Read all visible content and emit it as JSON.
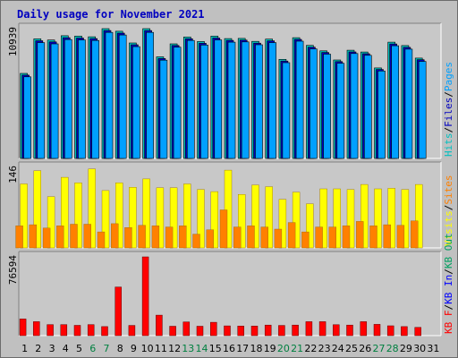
{
  "chart_data": {
    "type": "bar",
    "title": "Daily usage for November 2021",
    "days": [
      "1",
      "2",
      "3",
      "4",
      "5",
      "6",
      "7",
      "8",
      "9",
      "10",
      "11",
      "12",
      "13",
      "14",
      "15",
      "16",
      "17",
      "18",
      "19",
      "20",
      "21",
      "22",
      "23",
      "24",
      "25",
      "26",
      "27",
      "28",
      "29",
      "30",
      "31"
    ],
    "weekend_days": [
      "6",
      "7",
      "13",
      "14",
      "20",
      "21",
      "27",
      "28"
    ],
    "colors": {
      "hits": "#00c0c0",
      "files": "#0000c0",
      "pages": "#00a0ff",
      "visits": "#ffff00",
      "sites": "#ff8000",
      "kbf": "#ff0000",
      "kbin": "#0000ff",
      "kbout": "#00a060",
      "weekday_label": "#000000",
      "weekend_label": "#008040",
      "background": "#c0c0c0",
      "plot_background": "#c8c8c8"
    },
    "panels": [
      {
        "name": "hits-files-pages",
        "ymax_label": "10939",
        "ymax": 10939,
        "legend": [
          {
            "text": "Hits",
            "color": "#00c0c0"
          },
          {
            "text": "Files",
            "color": "#0000c0"
          },
          {
            "text": "Pages",
            "color": "#00a0ff"
          }
        ],
        "series": [
          {
            "name": "Hits",
            "values": [
              7170,
              10080,
              9980,
              10340,
              10310,
              10250,
              10940,
              10720,
              9730,
              10940,
              8560,
              9660,
              10240,
              9850,
              10310,
              10100,
              10120,
              9870,
              10060,
              8350,
              10180,
              9530,
              9070,
              8300,
              9120,
              8970,
              7630,
              9800,
              9510,
              8460
            ]
          },
          {
            "name": "Files",
            "values": [
              7020,
              9920,
              9820,
              10180,
              10150,
              10100,
              10780,
              10560,
              9580,
              10780,
              8420,
              9520,
              10090,
              9700,
              10150,
              9950,
              9970,
              9720,
              9910,
              8210,
              10030,
              9380,
              8930,
              8160,
              8980,
              8830,
              7500,
              9650,
              9360,
              8320
            ]
          },
          {
            "name": "Pages",
            "values": [
              6880,
              9760,
              9660,
              10020,
              9990,
              9940,
              10620,
              10400,
              9420,
              10620,
              8280,
              9380,
              9940,
              9560,
              9990,
              9800,
              9820,
              9580,
              9760,
              8070,
              9880,
              9230,
              8790,
              8020,
              8840,
              8690,
              7370,
              9500,
              9210,
              8180
            ]
          }
        ]
      },
      {
        "name": "visits-sites",
        "ymax_label": "146",
        "ymax": 146,
        "legend": [
          {
            "text": "Visits",
            "color": "#ffff00"
          },
          {
            "text": "Sites",
            "color": "#ff8000"
          }
        ],
        "series": [
          {
            "name": "Visits",
            "values": [
              116,
              140,
              93,
              128,
              118,
              143,
              104,
              118,
              110,
              125,
              109,
              109,
              116,
              106,
              102,
              141,
              97,
              114,
              111,
              88,
              101,
              80,
              107,
              107,
              106,
              115,
              107,
              108,
              106,
              115
            ]
          },
          {
            "name": "Sites",
            "values": [
              40,
              42,
              36,
              40,
              43,
              43,
              29,
              44,
              37,
              41,
              40,
              38,
              40,
              25,
              33,
              69,
              38,
              40,
              38,
              34,
              46,
              29,
              38,
              38,
              40,
              48,
              40,
              42,
              41,
              49
            ]
          }
        ]
      },
      {
        "name": "kb",
        "ymax_label": "76594",
        "ymax": 76594,
        "legend": [
          {
            "text": "KB F",
            "color": "#ff0000"
          },
          {
            "text": "KB In",
            "color": "#0000ff"
          },
          {
            "text": "KB Out",
            "color": "#00a060"
          }
        ],
        "series": [
          {
            "name": "KB F",
            "values": [
              16200,
              13600,
              10700,
              10700,
              10000,
              10700,
              8800,
              47300,
              9900,
              76600,
              19900,
              9100,
              13300,
              9100,
              13000,
              9500,
              9300,
              9300,
              10300,
              9900,
              10300,
              13600,
              13600,
              10600,
              10300,
              13600,
              11000,
              9600,
              8800,
              8000
            ]
          }
        ]
      }
    ]
  }
}
